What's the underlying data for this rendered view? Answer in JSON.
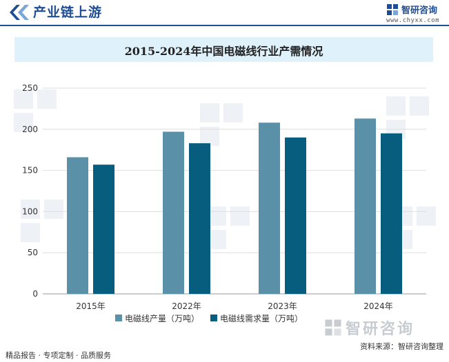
{
  "header": {
    "section_title": "产业链上游",
    "brand_name": "智研咨询",
    "brand_url": "www.chyxx.com"
  },
  "chart_data": {
    "type": "bar",
    "title": "2015-2024年中国电磁线行业产需情况",
    "categories": [
      "2015年",
      "2022年",
      "2023年",
      "2024年"
    ],
    "series": [
      {
        "name": "电磁线产量（万吨）",
        "values": [
          166,
          197,
          208,
          213
        ],
        "color": "#5a90a8"
      },
      {
        "name": "电磁线需求量（万吨）",
        "values": [
          157,
          183,
          190,
          195
        ],
        "color": "#065d7e"
      }
    ],
    "ylim": [
      0,
      250
    ],
    "yticks": [
      0,
      50,
      100,
      150,
      200,
      250
    ],
    "grid": true,
    "legend": "bottom"
  },
  "footer": {
    "left_text": "精品报告 · 专项定制 · 品质服务",
    "source_text": "资料来源：智研咨询整理",
    "brand_name": "智研咨询"
  },
  "colors": {
    "brand_blue": "#1f4d93",
    "title_bar_bg": "#dff1fb"
  }
}
